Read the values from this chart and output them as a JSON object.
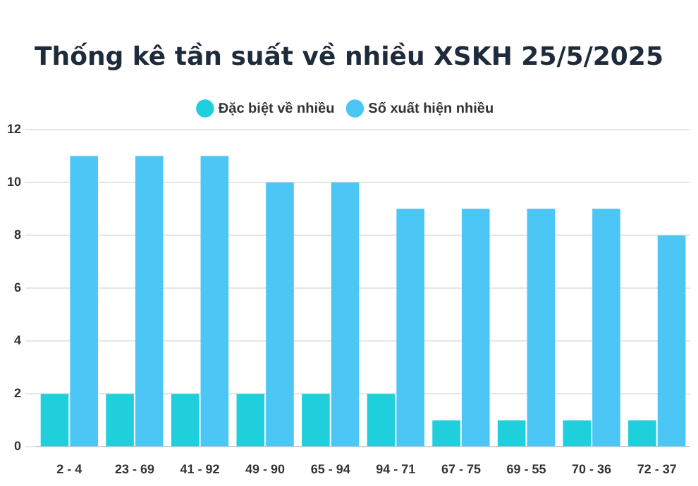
{
  "chart_data": {
    "type": "bar",
    "title": "Thống kê tần suất về nhiều XSKH 25/5/2025",
    "categories": [
      "2 - 4",
      "23 - 69",
      "41 - 92",
      "49 - 90",
      "65 - 94",
      "94 - 71",
      "67 - 75",
      "69 - 55",
      "70 - 36",
      "72 - 37"
    ],
    "series": [
      {
        "name": "Đặc biệt về nhiều",
        "color": "#1fcfdc",
        "values": [
          2,
          2,
          2,
          2,
          2,
          2,
          1,
          1,
          1,
          1
        ]
      },
      {
        "name": "Số xuất hiện nhiều",
        "color": "#4cc6f5",
        "values": [
          11,
          11,
          11,
          10,
          10,
          9,
          9,
          9,
          9,
          8
        ]
      }
    ],
    "ylim": [
      0,
      12
    ],
    "yticks": [
      0,
      2,
      4,
      6,
      8,
      10,
      12
    ],
    "grid": "y",
    "legend": "top"
  }
}
